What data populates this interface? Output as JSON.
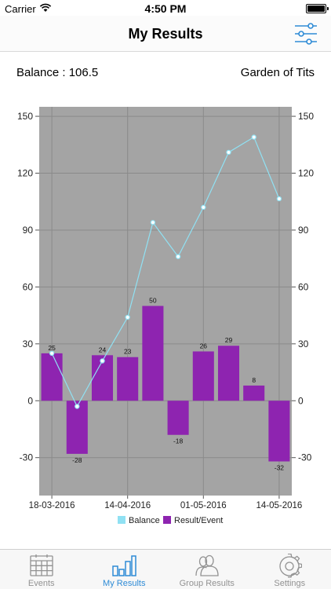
{
  "status_bar": {
    "carrier": "Carrier",
    "time": "4:50 PM"
  },
  "nav": {
    "title": "My Results",
    "filter_icon": "sliders-icon"
  },
  "info": {
    "balance": "Balance : 106.5",
    "venue": "Garden of Tits"
  },
  "colors": {
    "plot_background": "#a4a4a4",
    "bar": "#8e24b0",
    "line": "#90e1f3",
    "active_tab": "#2e8bd6",
    "inactive_tab": "#929292"
  },
  "chart_data": {
    "type": "bar",
    "y_ticks": [
      150,
      120,
      90,
      60,
      30,
      0,
      -30
    ],
    "ylim": [
      -50,
      155
    ],
    "x_tick_labels": [
      "18-03-2016",
      "14-04-2016",
      "01-05-2016",
      "14-05-2016"
    ],
    "x_tick_index": [
      0,
      3,
      6,
      9
    ],
    "bar_values": [
      25,
      -28,
      24,
      23,
      50,
      -18,
      26,
      29,
      8,
      -32
    ],
    "bar_labels": [
      "25",
      "-28",
      "24",
      "23",
      "50",
      "-18",
      "26",
      "29",
      "8",
      "-32"
    ],
    "line_values": [
      25,
      -3,
      21,
      44,
      94,
      76,
      102,
      131,
      139,
      106.5
    ],
    "legend": [
      {
        "label": "Balance",
        "color": "#90e1f3"
      },
      {
        "label": "Result/Event",
        "color": "#8e24b0"
      }
    ],
    "legend_position": "bottom",
    "grid": true
  },
  "tabs": [
    {
      "label": "Events",
      "icon": "calendar-icon",
      "active": false
    },
    {
      "label": "My Results",
      "icon": "bar-chart-icon",
      "active": true
    },
    {
      "label": "Group Results",
      "icon": "people-icon",
      "active": false
    },
    {
      "label": "Settings",
      "icon": "gear-icon",
      "active": false
    }
  ]
}
